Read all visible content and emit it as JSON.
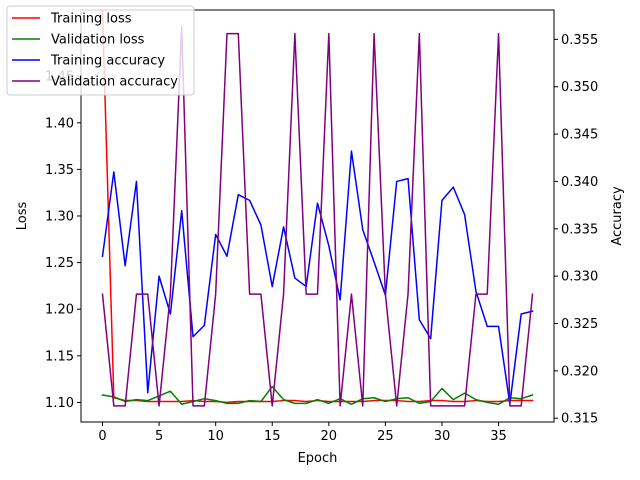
{
  "chart_data": {
    "type": "line",
    "xlabel": "Epoch",
    "ylabel_left": "Loss",
    "ylabel_right": "Accuracy",
    "x": [
      0,
      1,
      2,
      3,
      4,
      5,
      6,
      7,
      8,
      9,
      10,
      11,
      12,
      13,
      14,
      15,
      16,
      17,
      18,
      19,
      20,
      21,
      22,
      23,
      24,
      25,
      26,
      27,
      28,
      29,
      30,
      31,
      32,
      33,
      34,
      35,
      36,
      37,
      38
    ],
    "x_ticks": [
      0,
      5,
      10,
      15,
      20,
      25,
      30,
      35
    ],
    "xlim": [
      -1.9,
      39.9
    ],
    "left_axis": {
      "ylim": [
        1.079,
        1.521
      ],
      "ticks": [
        1.1,
        1.15,
        1.2,
        1.25,
        1.3,
        1.35,
        1.4,
        1.45
      ],
      "tick_labels": [
        "1.10",
        "1.15",
        "1.20",
        "1.25",
        "1.30",
        "1.35",
        "1.40",
        "1.45"
      ]
    },
    "right_axis": {
      "ylim": [
        0.3146,
        0.3581
      ],
      "ticks": [
        0.315,
        0.32,
        0.325,
        0.33,
        0.335,
        0.34,
        0.345,
        0.35,
        0.355
      ],
      "tick_labels": [
        "0.315",
        "0.320",
        "0.325",
        "0.330",
        "0.335",
        "0.340",
        "0.345",
        "0.350",
        "0.355"
      ]
    },
    "series": [
      {
        "name": "Training loss",
        "axis": "left",
        "color": "#ff0000",
        "values": [
          1.52,
          1.105,
          1.102,
          1.102,
          1.101,
          1.101,
          1.101,
          1.101,
          1.102,
          1.101,
          1.101,
          1.1,
          1.101,
          1.101,
          1.101,
          1.101,
          1.102,
          1.102,
          1.101,
          1.102,
          1.101,
          1.101,
          1.101,
          1.101,
          1.102,
          1.102,
          1.102,
          1.101,
          1.101,
          1.102,
          1.102,
          1.101,
          1.101,
          1.102,
          1.101,
          1.101,
          1.102,
          1.102,
          1.102
        ]
      },
      {
        "name": "Validation loss",
        "axis": "left",
        "color": "#008000",
        "values": [
          1.108,
          1.106,
          1.101,
          1.103,
          1.102,
          1.107,
          1.112,
          1.098,
          1.101,
          1.104,
          1.102,
          1.099,
          1.099,
          1.102,
          1.101,
          1.117,
          1.103,
          1.099,
          1.099,
          1.103,
          1.099,
          1.104,
          1.098,
          1.104,
          1.105,
          1.101,
          1.104,
          1.105,
          1.099,
          1.101,
          1.115,
          1.103,
          1.11,
          1.103,
          1.1,
          1.098,
          1.105,
          1.104,
          1.108
        ]
      },
      {
        "name": "Training accuracy",
        "axis": "right",
        "color": "#0000ff",
        "values": [
          0.3321,
          0.341,
          0.3311,
          0.34,
          0.3177,
          0.33,
          0.326,
          0.3369,
          0.3236,
          0.3248,
          0.3344,
          0.3321,
          0.3386,
          0.338,
          0.3354,
          0.3289,
          0.3352,
          0.3298,
          0.3289,
          0.3377,
          0.3332,
          0.3275,
          0.3432,
          0.3349,
          0.3315,
          0.328,
          0.34,
          0.3403,
          0.3254,
          0.3234,
          0.338,
          0.3394,
          0.3365,
          0.3284,
          0.3247,
          0.3247,
          0.3165,
          0.326,
          0.3263
        ]
      },
      {
        "name": "Validation accuracy",
        "axis": "right",
        "color": "#800080",
        "values": [
          0.3281,
          0.3163,
          0.3163,
          0.3281,
          0.3281,
          0.3163,
          0.3281,
          0.3563,
          0.3163,
          0.3163,
          0.3281,
          0.3556,
          0.3556,
          0.3281,
          0.3281,
          0.3163,
          0.3281,
          0.3556,
          0.3281,
          0.3281,
          0.3556,
          0.3163,
          0.3281,
          0.3163,
          0.3556,
          0.3281,
          0.3163,
          0.3281,
          0.3556,
          0.3163,
          0.3163,
          0.3163,
          0.3163,
          0.3281,
          0.3281,
          0.3556,
          0.3163,
          0.3163,
          0.3281
        ]
      }
    ],
    "legend_position": "upper-left"
  }
}
